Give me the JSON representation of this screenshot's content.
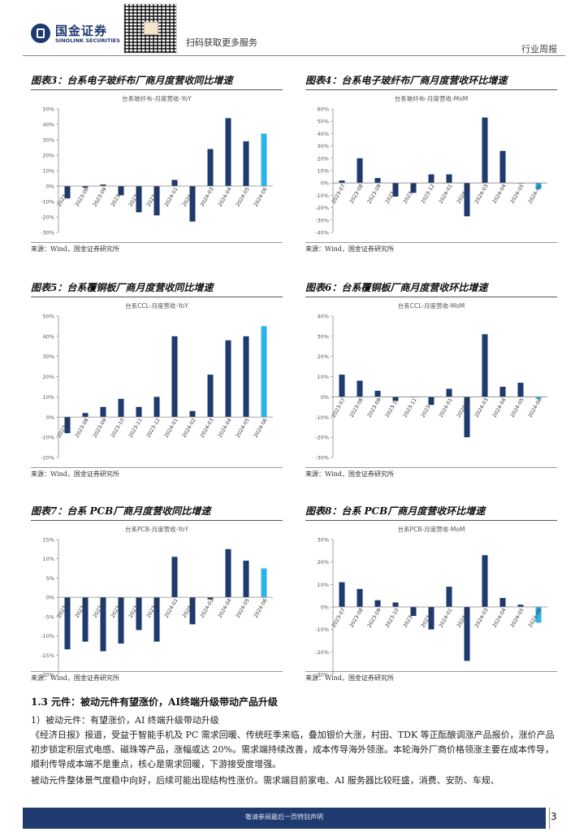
{
  "header": {
    "brand_cn": "国金证券",
    "brand_en": "SINOLINK SECURITIES",
    "scan_text": "扫码获取更多服务",
    "report_type": "行业周报"
  },
  "source_text": "来源：Wind，国金证券研究所",
  "figures": [
    {
      "id": "fig3",
      "title": "图表3：台系电子玻纤布厂商月度营收同比增速"
    },
    {
      "id": "fig4",
      "title": "图表4：台系电子玻纤布厂商月度营收环比增速"
    },
    {
      "id": "fig5",
      "title": "图表5：台系覆铜板厂商月度营收同比增速"
    },
    {
      "id": "fig6",
      "title": "图表6：台系覆铜板厂商月度营收环比增速"
    },
    {
      "id": "fig7",
      "title": "图表7：台系 PCB厂商月度营收同比增速"
    },
    {
      "id": "fig8",
      "title": "图表8：台系 PCB厂商月度营收环比增速"
    }
  ],
  "chart_data": [
    {
      "type": "bar",
      "title": "台系玻纤布-月度营收-YoY",
      "categories": [
        "2023-07",
        "2023-08",
        "2023-09",
        "2023-10",
        "2023-11",
        "2023-12",
        "2024-01",
        "2024-02",
        "2024-03",
        "2024-04",
        "2024-05",
        "2024-06"
      ],
      "values": [
        -8,
        -1,
        1,
        -6,
        -17,
        -19,
        4,
        -23,
        24,
        44,
        29,
        34
      ],
      "ylim": [
        -30,
        50
      ],
      "yticks": [
        -30,
        -20,
        -10,
        0,
        10,
        20,
        30,
        40,
        50
      ],
      "highlight_last": true
    },
    {
      "type": "bar",
      "title": "台系玻纤布-月度营收-MoM",
      "categories": [
        "2023-07",
        "2023-08",
        "2023-09",
        "2023-10",
        "2023-11",
        "2023-12",
        "2024-01",
        "2024-02",
        "2024-03",
        "2024-04",
        "2024-05",
        "2024-06"
      ],
      "values": [
        2,
        20,
        4,
        -11,
        -8,
        7,
        7,
        -27,
        53,
        26,
        0,
        -5
      ],
      "ylim": [
        -40,
        60
      ],
      "yticks": [
        -40,
        -30,
        -20,
        -10,
        0,
        10,
        20,
        30,
        40,
        50,
        60
      ],
      "highlight_last": true
    },
    {
      "type": "bar",
      "title": "台系CCL-月度营收-YoY",
      "categories": [
        "2023-07",
        "2023-08",
        "2023-09",
        "2023-10",
        "2023-11",
        "2023-12",
        "2024-01",
        "2024-02",
        "2024-03",
        "2024-04",
        "2024-05",
        "2024-06"
      ],
      "values": [
        -8,
        2,
        5,
        9,
        5,
        10,
        40,
        3,
        21,
        38,
        40,
        45
      ],
      "ylim": [
        -20,
        50
      ],
      "yticks": [
        -20,
        -10,
        0,
        10,
        20,
        30,
        40,
        50
      ],
      "highlight_last": true
    },
    {
      "type": "bar",
      "title": "台系CCL-月度营收-MoM",
      "categories": [
        "2023-07",
        "2023-08",
        "2023-09",
        "2023-10",
        "2023-11",
        "2023-12",
        "2024-01",
        "2024-02",
        "2024-03",
        "2024-04",
        "2024-05",
        "2024-06"
      ],
      "values": [
        11,
        8,
        3,
        -2,
        0,
        -4,
        4,
        -20,
        31,
        5,
        7,
        -1
      ],
      "ylim": [
        -30,
        40
      ],
      "yticks": [
        -30,
        -20,
        -10,
        0,
        10,
        20,
        30,
        40
      ],
      "highlight_last": true
    },
    {
      "type": "bar",
      "title": "台系PCB-月度营收-YoY",
      "categories": [
        "2023-07",
        "2023-08",
        "2023-09",
        "2023-10",
        "2023-11",
        "2023-12",
        "2024-01",
        "2024-02",
        "2024-03",
        "2024-04",
        "2024-05",
        "2024-06"
      ],
      "values": [
        -13.5,
        -11.5,
        -14,
        -12,
        -8.5,
        -11.5,
        10.5,
        -7,
        -0.5,
        12.5,
        9.5,
        7.5
      ],
      "ylim": [
        -20,
        15
      ],
      "yticks": [
        -20,
        -15,
        -10,
        -5,
        0,
        5,
        10,
        15
      ],
      "highlight_last": true
    },
    {
      "type": "bar",
      "title": "台系PCB-月度营收-MoM",
      "categories": [
        "2023-07",
        "2023-08",
        "2023-09",
        "2023-10",
        "2023-11",
        "2023-12",
        "2024-01",
        "2024-02",
        "2024-03",
        "2024-04",
        "2024-05",
        "2024-06"
      ],
      "values": [
        11,
        8,
        3,
        2,
        -4,
        -10,
        9,
        -24,
        23,
        4,
        1,
        -7
      ],
      "ylim": [
        -30,
        30
      ],
      "yticks": [
        -30,
        -20,
        -10,
        0,
        10,
        20,
        30
      ],
      "highlight_last": true
    }
  ],
  "section": {
    "title": "1.3 元件：被动元件有望涨价，AI终端升级带动产品升级",
    "subtitle": "1）被动元件：有望涨价，AI 终端升级带动升级",
    "para1": "《经济日报》报道，受益于智能手机及 PC 需求回暖、传统旺季来临，叠加银价大涨，村田、TDK 等正酝酿调涨产品报价，涨价产品初步锁定积层式电感、磁珠等产品，涨幅或达 20%。需求端持续改善，成本传导海外领涨。本轮海外厂商价格领涨主要在成本传导，顺利传导成本端不是重点，核心是需求回暖，下游接受度增强。",
    "para2": "被动元件整体景气度稳中向好，后续可能出现结构性涨价。需求端目前家电、AI 服务器比较旺盛，消费、安防、车规、"
  },
  "footer": {
    "disclaimer": "敬请参阅最后一页特别声明",
    "page_number": "3"
  },
  "colors": {
    "bar": "#1e3a6e",
    "highlight": "#2bb3ea",
    "axis": "#888888",
    "text": "#555555"
  }
}
